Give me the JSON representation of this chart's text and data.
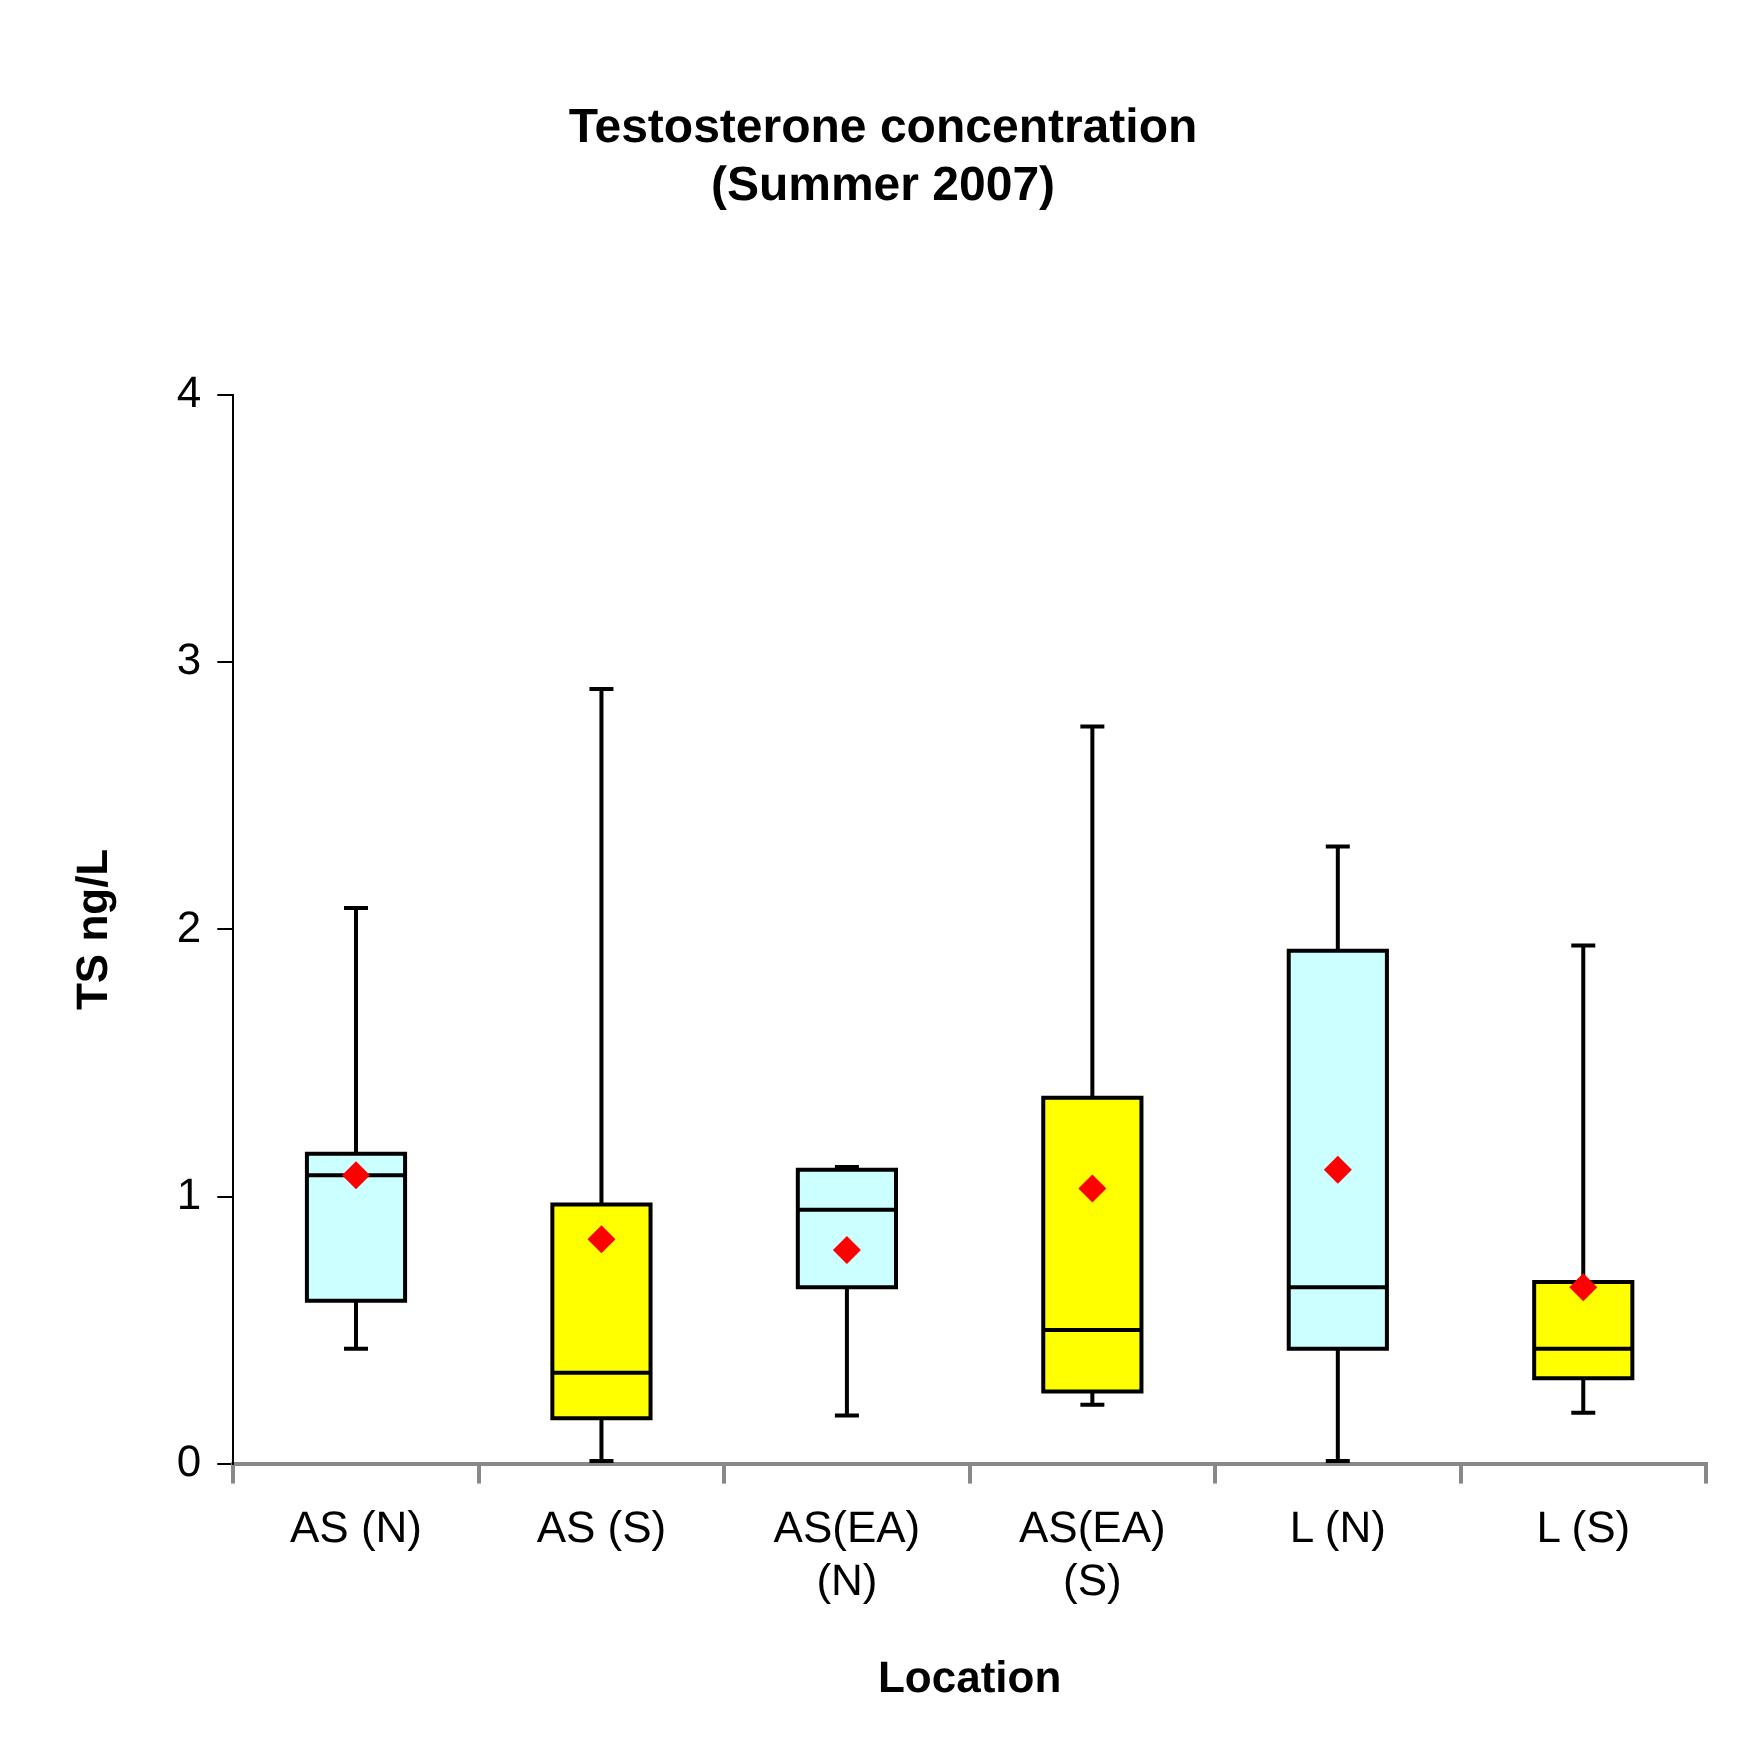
{
  "chart_data": {
    "type": "box",
    "title": "Testosterone concentration\n(Summer 2007)",
    "xlabel": "Location",
    "ylabel": "TS ng/L",
    "categories": [
      "AS (N)",
      "AS (S)",
      "AS(EA)\n(N)",
      "AS(EA)\n(S)",
      "L (N)",
      "L (S)"
    ],
    "colors": [
      "#ccffff",
      "#ffff00",
      "#ccffff",
      "#ffff00",
      "#ccffff",
      "#ffff00"
    ],
    "boxes": [
      {
        "low": 0.43,
        "q1": 0.61,
        "median": 1.08,
        "q3": 1.16,
        "high": 2.08,
        "mean": 1.08
      },
      {
        "low": 0.01,
        "q1": 0.17,
        "median": 0.34,
        "q3": 0.97,
        "high": 2.9,
        "mean": 0.84
      },
      {
        "low": 0.18,
        "q1": 0.66,
        "median": 0.95,
        "q3": 1.1,
        "high": 1.11,
        "mean": 0.8
      },
      {
        "low": 0.22,
        "q1": 0.27,
        "median": 0.5,
        "q3": 1.37,
        "high": 2.76,
        "mean": 1.03
      },
      {
        "low": 0.01,
        "q1": 0.43,
        "median": 0.66,
        "q3": 1.92,
        "high": 2.31,
        "mean": 1.1
      },
      {
        "low": 0.19,
        "q1": 0.32,
        "median": 0.43,
        "q3": 0.68,
        "high": 1.94,
        "mean": 0.66
      }
    ],
    "ylim": [
      0,
      4
    ],
    "yticks": [
      0,
      1,
      2,
      3,
      4
    ],
    "grid": false,
    "legend": false,
    "marker": "diamond"
  }
}
